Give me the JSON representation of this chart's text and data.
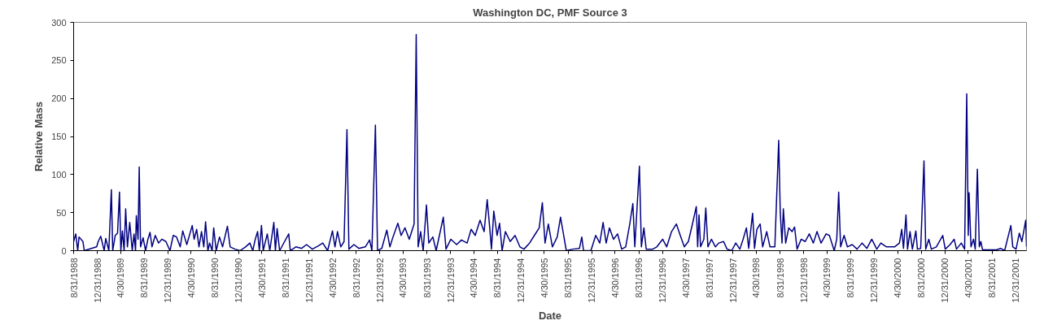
{
  "chart_data": {
    "type": "line",
    "title": "Washington DC, PMF Source 3",
    "xlabel": "Date",
    "ylabel": "Relative Mass",
    "x": [
      "1988-08-31",
      "1988-09-11",
      "1988-09-21",
      "1988-09-28",
      "1988-10-18",
      "1988-10-25",
      "1988-12-28",
      "1989-01-05",
      "1989-01-18",
      "1989-02-05",
      "1989-02-13",
      "1989-03-01",
      "1989-03-14",
      "1989-03-21",
      "1989-04-03",
      "1989-04-15",
      "1989-04-25",
      "1989-05-02",
      "1989-05-10",
      "1989-05-19",
      "1989-05-27",
      "1989-06-05",
      "1989-06-17",
      "1989-06-30",
      "1989-07-09",
      "1989-07-17",
      "1989-07-21",
      "1989-07-30",
      "1989-08-05",
      "1989-08-12",
      "1989-08-25",
      "1989-09-07",
      "1989-09-19",
      "1989-09-30",
      "1989-10-10",
      "1989-10-27",
      "1989-11-13",
      "1989-11-30",
      "1989-12-21",
      "1990-01-11",
      "1990-01-28",
      "1990-02-14",
      "1990-03-05",
      "1990-03-18",
      "1990-04-08",
      "1990-05-06",
      "1990-05-16",
      "1990-05-29",
      "1990-06-10",
      "1990-06-23",
      "1990-07-05",
      "1990-07-14",
      "1990-07-26",
      "1990-08-04",
      "1990-08-17",
      "1990-08-25",
      "1990-09-07",
      "1990-09-24",
      "1990-10-10",
      "1990-11-04",
      "1990-11-18",
      "1990-12-13",
      "1991-01-08",
      "1991-02-06",
      "1991-02-28",
      "1991-03-15",
      "1991-03-28",
      "1991-04-09",
      "1991-04-18",
      "1991-04-29",
      "1991-05-08",
      "1991-05-29",
      "1991-06-11",
      "1991-07-02",
      "1991-07-10",
      "1991-07-19",
      "1991-08-01",
      "1991-09-17",
      "1991-09-25",
      "1991-10-24",
      "1991-11-23",
      "1991-12-18",
      "1992-01-17",
      "1992-02-15",
      "1992-03-11",
      "1992-04-05",
      "1992-04-30",
      "1992-05-13",
      "1992-05-26",
      "1992-06-12",
      "1992-06-29",
      "1992-07-14",
      "1992-07-24",
      "1992-08-19",
      "1992-09-13",
      "1992-10-17",
      "1992-11-08",
      "1992-11-20",
      "1992-12-08",
      "1992-12-19",
      "1993-01-10",
      "1993-02-05",
      "1993-02-21",
      "1993-03-09",
      "1993-04-03",
      "1993-04-20",
      "1993-05-10",
      "1993-06-01",
      "1993-06-26",
      "1993-07-07",
      "1993-07-17",
      "1993-07-30",
      "1993-08-12",
      "1993-08-29",
      "1993-09-10",
      "1993-10-01",
      "1993-10-18",
      "1993-11-04",
      "1993-11-24",
      "1993-12-08",
      "1994-01-02",
      "1994-02-01",
      "1994-02-26",
      "1994-03-27",
      "1994-04-17",
      "1994-05-08",
      "1994-06-02",
      "1994-06-23",
      "1994-07-09",
      "1994-07-22",
      "1994-07-31",
      "1994-08-12",
      "1994-08-29",
      "1994-09-11",
      "1994-09-24",
      "1994-10-11",
      "1994-11-05",
      "1994-11-30",
      "1994-12-25",
      "1995-01-15",
      "1995-02-13",
      "1995-03-10",
      "1995-04-04",
      "1995-04-20",
      "1995-05-04",
      "1995-05-21",
      "1995-06-11",
      "1995-07-06",
      "1995-07-23",
      "1995-08-05",
      "1995-08-22",
      "1995-09-25",
      "1995-10-29",
      "1995-11-10",
      "1995-11-19",
      "1995-12-14",
      "1995-12-27",
      "1996-01-21",
      "1996-02-11",
      "1996-02-28",
      "1996-03-15",
      "1996-04-01",
      "1996-04-22",
      "1996-05-13",
      "1996-06-03",
      "1996-06-24",
      "1996-07-15",
      "1996-07-31",
      "1996-08-10",
      "1996-09-03",
      "1996-09-13",
      "1996-09-26",
      "1996-10-08",
      "1996-11-11",
      "1996-12-02",
      "1997-01-01",
      "1997-01-22",
      "1997-02-16",
      "1997-03-13",
      "1997-04-02",
      "1997-04-23",
      "1997-05-14",
      "1997-06-04",
      "1997-06-24",
      "1997-07-01",
      "1997-07-08",
      "1997-07-16",
      "1997-08-02",
      "1997-08-12",
      "1997-08-23",
      "1997-09-10",
      "1997-10-01",
      "1997-10-18",
      "1997-11-12",
      "1997-11-30",
      "1997-12-24",
      "1998-01-14",
      "1998-02-04",
      "1998-02-21",
      "1998-03-10",
      "1998-03-22",
      "1998-04-11",
      "1998-04-21",
      "1998-05-03",
      "1998-05-20",
      "1998-06-02",
      "1998-06-23",
      "1998-07-10",
      "1998-08-04",
      "1998-08-24",
      "1998-09-01",
      "1998-09-10",
      "1998-09-17",
      "1998-09-29",
      "1998-10-15",
      "1998-11-01",
      "1998-11-14",
      "1998-11-27",
      "1998-12-18",
      "1999-01-08",
      "1999-01-29",
      "1999-02-19",
      "1999-03-10",
      "1999-03-31",
      "1999-04-26",
      "1999-05-13",
      "1999-06-07",
      "1999-06-20",
      "1999-06-30",
      "1999-07-10",
      "1999-07-28",
      "1999-08-14",
      "1999-09-08",
      "1999-10-03",
      "1999-10-29",
      "1999-11-23",
      "1999-12-18",
      "2000-01-13",
      "2000-02-03",
      "2000-03-03",
      "2000-04-14",
      "2000-05-09",
      "2000-05-21",
      "2000-05-30",
      "2000-06-12",
      "2000-06-20",
      "2000-07-03",
      "2000-07-15",
      "2000-08-02",
      "2000-08-10",
      "2000-08-27",
      "2000-09-13",
      "2000-09-22",
      "2000-10-08",
      "2000-10-21",
      "2000-11-16",
      "2000-12-19",
      "2001-01-01",
      "2001-01-26",
      "2001-02-16",
      "2001-02-28",
      "2001-03-25",
      "2001-04-11",
      "2001-04-22",
      "2001-04-30",
      "2001-05-04",
      "2001-05-14",
      "2001-05-27",
      "2001-06-05",
      "2001-06-16",
      "2001-06-26",
      "2001-07-04",
      "2001-07-13",
      "2001-09-23",
      "2001-10-14",
      "2001-11-04",
      "2001-12-06",
      "2001-12-16",
      "2002-01-02",
      "2002-01-19",
      "2002-02-01",
      "2002-02-21",
      "2002-02-25"
    ],
    "series": [
      {
        "color": "#000080",
        "values": [
          12,
          22,
          0,
          18,
          12,
          0,
          5,
          12,
          19,
          0,
          16,
          0,
          80,
          0,
          20,
          23,
          77,
          0,
          26,
          0,
          55,
          5,
          37,
          0,
          22,
          0,
          46,
          15,
          110,
          5,
          17,
          0,
          15,
          24,
          5,
          20,
          10,
          15,
          12,
          0,
          20,
          18,
          5,
          26,
          8,
          33,
          15,
          28,
          5,
          25,
          5,
          38,
          0,
          10,
          0,
          30,
          0,
          18,
          5,
          32,
          5,
          2,
          0,
          5,
          10,
          0,
          15,
          25,
          0,
          33,
          0,
          22,
          0,
          37,
          0,
          29,
          0,
          22,
          0,
          5,
          3,
          8,
          2,
          6,
          10,
          0,
          26,
          5,
          25,
          5,
          12,
          159,
          2,
          8,
          3,
          5,
          14,
          0,
          165,
          0,
          3,
          27,
          5,
          18,
          36,
          20,
          30,
          15,
          35,
          284,
          5,
          25,
          0,
          60,
          10,
          18,
          0,
          20,
          44,
          2,
          15,
          8,
          14,
          10,
          28,
          20,
          40,
          25,
          67,
          30,
          2,
          52,
          20,
          36,
          0,
          25,
          12,
          20,
          5,
          2,
          10,
          20,
          30,
          63,
          10,
          35,
          5,
          18,
          44,
          25,
          0,
          2,
          3,
          18,
          0,
          0,
          0,
          20,
          10,
          37,
          10,
          30,
          15,
          22,
          2,
          5,
          35,
          62,
          5,
          111,
          5,
          30,
          2,
          2,
          5,
          15,
          5,
          25,
          35,
          20,
          5,
          12,
          35,
          58,
          5,
          47,
          5,
          15,
          56,
          5,
          15,
          5,
          10,
          12,
          2,
          0,
          10,
          2,
          15,
          30,
          3,
          49,
          3,
          28,
          35,
          5,
          25,
          5,
          5,
          145,
          50,
          10,
          55,
          10,
          30,
          25,
          31,
          2,
          15,
          12,
          22,
          10,
          25,
          10,
          22,
          20,
          0,
          15,
          77,
          5,
          20,
          5,
          8,
          2,
          10,
          3,
          15,
          2,
          10,
          5,
          5,
          10,
          28,
          3,
          47,
          2,
          25,
          2,
          26,
          2,
          3,
          118,
          2,
          15,
          2,
          5,
          20,
          2,
          8,
          15,
          2,
          10,
          2,
          206,
          20,
          76,
          5,
          15,
          2,
          107,
          5,
          12,
          1,
          1,
          3,
          0,
          33,
          5,
          2,
          23,
          12,
          40,
          5
        ]
      }
    ],
    "xlim": [
      "1988-08-31",
      "2002-02-25"
    ],
    "xticks": [
      {
        "value": "1988-08-31",
        "label": "8/31/1988"
      },
      {
        "value": "1988-12-31",
        "label": "12/31/1988"
      },
      {
        "value": "1989-04-30",
        "label": "4/30/1989"
      },
      {
        "value": "1989-08-31",
        "label": "8/31/1989"
      },
      {
        "value": "1989-12-31",
        "label": "12/31/1989"
      },
      {
        "value": "1990-04-30",
        "label": "4/30/1990"
      },
      {
        "value": "1990-08-31",
        "label": "8/31/1990"
      },
      {
        "value": "1990-12-31",
        "label": "12/31/1990"
      },
      {
        "value": "1991-04-30",
        "label": "4/30/1991"
      },
      {
        "value": "1991-08-31",
        "label": "8/31/1991"
      },
      {
        "value": "1991-12-31",
        "label": "12/31/1991"
      },
      {
        "value": "1992-04-30",
        "label": "4/30/1992"
      },
      {
        "value": "1992-08-31",
        "label": "8/31/1992"
      },
      {
        "value": "1992-12-31",
        "label": "12/31/1992"
      },
      {
        "value": "1993-04-30",
        "label": "4/30/1993"
      },
      {
        "value": "1993-08-31",
        "label": "8/31/1993"
      },
      {
        "value": "1993-12-31",
        "label": "12/31/1993"
      },
      {
        "value": "1994-04-30",
        "label": "4/30/1994"
      },
      {
        "value": "1994-08-31",
        "label": "8/31/1994"
      },
      {
        "value": "1994-12-31",
        "label": "12/31/1994"
      },
      {
        "value": "1995-04-30",
        "label": "4/30/1995"
      },
      {
        "value": "1995-08-31",
        "label": "8/31/1995"
      },
      {
        "value": "1995-12-31",
        "label": "12/31/1995"
      },
      {
        "value": "1996-04-30",
        "label": "4/30/1996"
      },
      {
        "value": "1996-08-31",
        "label": "8/31/1996"
      },
      {
        "value": "1996-12-31",
        "label": "12/31/1996"
      },
      {
        "value": "1997-04-30",
        "label": "4/30/1997"
      },
      {
        "value": "1997-08-31",
        "label": "8/31/1997"
      },
      {
        "value": "1997-12-31",
        "label": "12/31/1997"
      },
      {
        "value": "1998-04-30",
        "label": "4/30/1998"
      },
      {
        "value": "1998-08-31",
        "label": "8/31/1998"
      },
      {
        "value": "1998-12-31",
        "label": "12/31/1998"
      },
      {
        "value": "1999-04-30",
        "label": "4/30/1999"
      },
      {
        "value": "1999-08-31",
        "label": "8/31/1999"
      },
      {
        "value": "1999-12-31",
        "label": "12/31/1999"
      },
      {
        "value": "2000-04-30",
        "label": "4/30/2000"
      },
      {
        "value": "2000-08-31",
        "label": "8/31/2000"
      },
      {
        "value": "2000-12-31",
        "label": "12/31/2000"
      },
      {
        "value": "2001-04-30",
        "label": "4/30/2001"
      },
      {
        "value": "2001-08-31",
        "label": "8/31/2001"
      },
      {
        "value": "2001-12-31",
        "label": "12/31/2001"
      }
    ],
    "ylim": [
      0,
      300
    ],
    "yticks": [
      0,
      50,
      100,
      150,
      200,
      250,
      300
    ],
    "grid": false,
    "marker": "none",
    "line_style": "solid"
  }
}
